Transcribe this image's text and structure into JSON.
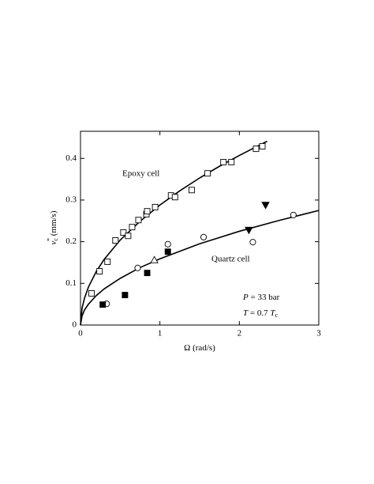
{
  "chart_data": {
    "type": "scatter",
    "xlabel": {
      "symbol": "Ω",
      "unit": "(rad/s)"
    },
    "ylabel": {
      "symbol": "v",
      "subscript": "c",
      "superscript": "*",
      "unit": "(mm/s)"
    },
    "xlim": [
      0,
      3
    ],
    "xticks": [
      0,
      1,
      2,
      3
    ],
    "ylim": [
      0,
      0.465
    ],
    "yticks": [
      0,
      0.1,
      0.2,
      0.3,
      0.4
    ],
    "color": "#000000",
    "series": [
      {
        "marker": "square",
        "filled": false,
        "x": [
          0.14,
          0.24,
          0.34,
          0.44,
          0.54,
          0.6,
          0.65,
          0.73,
          0.83,
          0.84,
          0.94,
          1.14,
          1.19,
          1.4,
          1.6,
          1.8,
          1.9,
          2.21,
          2.29
        ],
        "values": [
          0.076,
          0.129,
          0.152,
          0.203,
          0.222,
          0.214,
          0.235,
          0.252,
          0.266,
          0.273,
          0.283,
          0.311,
          0.307,
          0.324,
          0.364,
          0.391,
          0.391,
          0.423,
          0.429
        ]
      },
      {
        "marker": "circle",
        "filled": false,
        "x": [
          0.33,
          0.72,
          1.1,
          1.55,
          2.17,
          2.68
        ],
        "values": [
          0.051,
          0.137,
          0.194,
          0.211,
          0.199,
          0.264
        ]
      },
      {
        "marker": "square",
        "filled": true,
        "x": [
          0.28,
          0.56,
          0.84,
          1.1
        ],
        "values": [
          0.049,
          0.072,
          0.125,
          0.176
        ]
      },
      {
        "marker": "triangle-up",
        "filled": false,
        "x": [
          0.93
        ],
        "values": [
          0.156
        ]
      },
      {
        "marker": "triangle-down",
        "filled": true,
        "x": [
          2.12,
          2.33
        ],
        "values": [
          0.228,
          0.288
        ]
      }
    ],
    "curves": [
      {
        "x": [
          0,
          0.02,
          0.05,
          0.1,
          0.2,
          0.3,
          0.5,
          0.75,
          1,
          1.25,
          1.5,
          1.75,
          2,
          2.35
        ],
        "values": [
          0,
          0.041,
          0.064,
          0.091,
          0.129,
          0.158,
          0.204,
          0.249,
          0.288,
          0.322,
          0.353,
          0.381,
          0.407,
          0.441
        ]
      },
      {
        "x": [
          0,
          0.02,
          0.05,
          0.1,
          0.2,
          0.3,
          0.5,
          0.75,
          1,
          1.5,
          2,
          2.5,
          3
        ],
        "values": [
          0,
          0.022,
          0.036,
          0.05,
          0.071,
          0.087,
          0.112,
          0.138,
          0.159,
          0.195,
          0.225,
          0.251,
          0.275
        ]
      }
    ],
    "annotations": [
      {
        "text": "Epoxy cell"
      },
      {
        "text": "Quartz cell"
      },
      {
        "symbol": "P",
        "text": "= 33 bar"
      },
      {
        "symbol": "T",
        "text": "= 0.7",
        "symbol2": "T",
        "subscript": "c"
      }
    ]
  }
}
